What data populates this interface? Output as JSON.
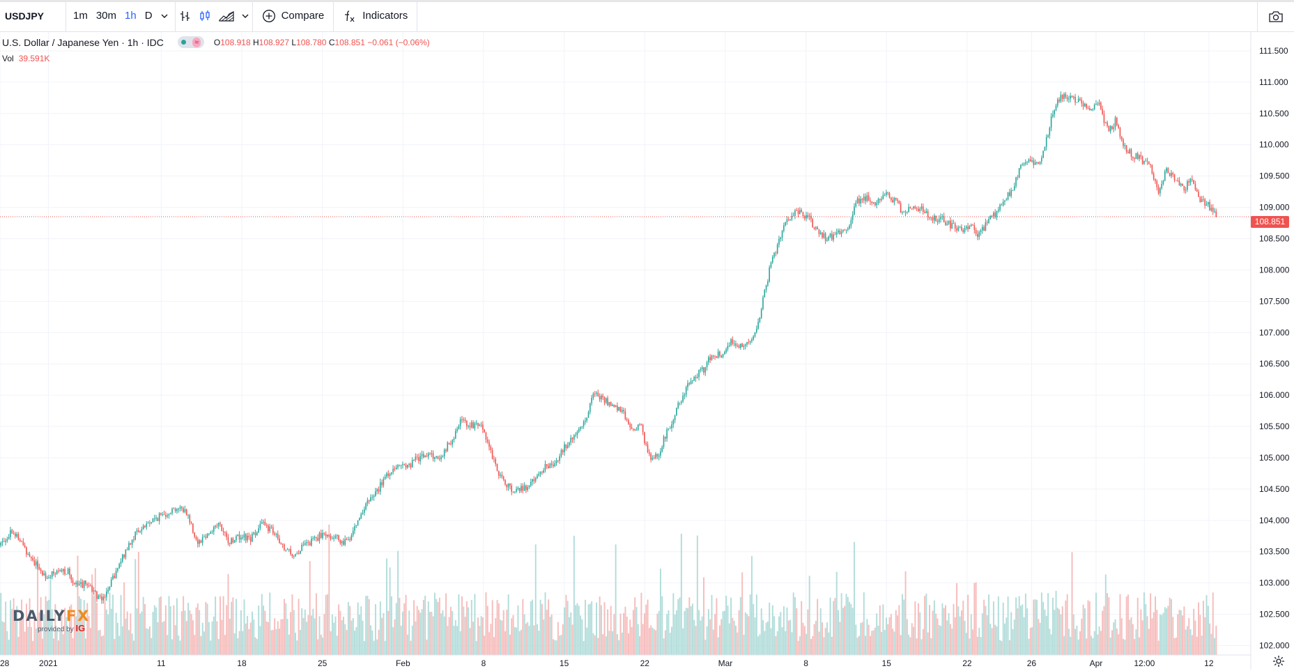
{
  "toolbar": {
    "symbol": "USDJPY",
    "intervals": [
      "1m",
      "30m",
      "1h",
      "D"
    ],
    "active_interval": "1h",
    "compare_label": "Compare",
    "indicators_label": "Indicators"
  },
  "legend": {
    "title": "U.S. Dollar / Japanese Yen · 1h · IDC",
    "open_key": "O",
    "open": "108.918",
    "high_key": "H",
    "high": "108.927",
    "low_key": "L",
    "low": "108.780",
    "close_key": "C",
    "close": "108.851",
    "change": "−0.061 (−0.06%)",
    "vol_label": "Vol",
    "vol_value": "39.591K"
  },
  "price_tag": "108.851",
  "watermark": {
    "brand_a": "DAILY",
    "brand_b": "FX",
    "provided_by": "provided by",
    "ig": "IG"
  },
  "colors": {
    "up": "#26a69a",
    "down": "#ef5350",
    "up_vol": "#a4d7d3",
    "down_vol": "#f5b1b0",
    "grid": "#f0f3fa"
  },
  "chart_data": {
    "type": "candlestick",
    "symbol": "USDJPY",
    "y_ticks": [
      "111.500",
      "111.000",
      "110.500",
      "110.000",
      "109.500",
      "109.000",
      "108.500",
      "108.000",
      "107.500",
      "107.000",
      "106.500",
      "106.000",
      "105.500",
      "105.000",
      "104.500",
      "104.000",
      "103.500",
      "103.000",
      "102.500",
      "102.000"
    ],
    "ylim": [
      101.85,
      111.8
    ],
    "x_ticks": [
      {
        "label": "28",
        "t": 0
      },
      {
        "label": "2021",
        "t": 3
      },
      {
        "label": "11",
        "t": 10
      },
      {
        "label": "18",
        "t": 15
      },
      {
        "label": "25",
        "t": 20
      },
      {
        "label": "Feb",
        "t": 25
      },
      {
        "label": "8",
        "t": 30
      },
      {
        "label": "15",
        "t": 35
      },
      {
        "label": "22",
        "t": 40
      },
      {
        "label": "Mar",
        "t": 45
      },
      {
        "label": "8",
        "t": 50
      },
      {
        "label": "15",
        "t": 55
      },
      {
        "label": "22",
        "t": 60
      },
      {
        "label": "26",
        "t": 64
      },
      {
        "label": "Apr",
        "t": 68
      },
      {
        "label": "12:00",
        "t": 71
      },
      {
        "label": "12",
        "t": 75
      }
    ],
    "xlim": [
      0,
      77.6
    ],
    "last_price": 108.851,
    "price_path": [
      [
        0,
        103.6
      ],
      [
        0.8,
        103.85
      ],
      [
        1.6,
        103.55
      ],
      [
        2.4,
        103.25
      ],
      [
        2.9,
        103.1
      ],
      [
        3.6,
        103.15
      ],
      [
        4.2,
        103.2
      ],
      [
        4.8,
        102.95
      ],
      [
        5.5,
        103.0
      ],
      [
        6.2,
        102.75
      ],
      [
        6.7,
        102.85
      ],
      [
        7.3,
        103.2
      ],
      [
        8.0,
        103.6
      ],
      [
        8.5,
        103.8
      ],
      [
        9.2,
        103.95
      ],
      [
        10.2,
        104.1
      ],
      [
        11.0,
        104.2
      ],
      [
        11.6,
        104.15
      ],
      [
        12.3,
        103.65
      ],
      [
        13.0,
        103.8
      ],
      [
        13.6,
        103.95
      ],
      [
        14.2,
        103.65
      ],
      [
        14.9,
        103.75
      ],
      [
        15.6,
        103.7
      ],
      [
        16.2,
        103.95
      ],
      [
        16.9,
        103.85
      ],
      [
        17.6,
        103.55
      ],
      [
        18.3,
        103.45
      ],
      [
        19.0,
        103.6
      ],
      [
        19.7,
        103.72
      ],
      [
        20.3,
        103.8
      ],
      [
        21.0,
        103.7
      ],
      [
        21.6,
        103.65
      ],
      [
        22.2,
        104.0
      ],
      [
        22.8,
        104.25
      ],
      [
        23.4,
        104.45
      ],
      [
        24.0,
        104.7
      ],
      [
        24.7,
        104.9
      ],
      [
        25.3,
        104.85
      ],
      [
        26.0,
        105.0
      ],
      [
        26.6,
        105.05
      ],
      [
        27.3,
        105.0
      ],
      [
        28.0,
        105.25
      ],
      [
        28.7,
        105.6
      ],
      [
        29.4,
        105.5
      ],
      [
        30.0,
        105.5
      ],
      [
        30.6,
        105.0
      ],
      [
        31.2,
        104.65
      ],
      [
        31.8,
        104.5
      ],
      [
        32.5,
        104.5
      ],
      [
        33.1,
        104.6
      ],
      [
        33.8,
        104.85
      ],
      [
        34.4,
        104.9
      ],
      [
        35.0,
        105.15
      ],
      [
        35.7,
        105.35
      ],
      [
        36.3,
        105.55
      ],
      [
        36.9,
        106.05
      ],
      [
        37.5,
        105.95
      ],
      [
        38.0,
        105.8
      ],
      [
        38.7,
        105.75
      ],
      [
        39.2,
        105.4
      ],
      [
        39.8,
        105.55
      ],
      [
        40.3,
        105.0
      ],
      [
        40.9,
        105.05
      ],
      [
        41.4,
        105.4
      ],
      [
        42.0,
        105.75
      ],
      [
        42.6,
        106.1
      ],
      [
        43.1,
        106.3
      ],
      [
        43.7,
        106.4
      ],
      [
        44.2,
        106.65
      ],
      [
        44.8,
        106.65
      ],
      [
        45.4,
        106.85
      ],
      [
        46.0,
        106.8
      ],
      [
        46.7,
        106.85
      ],
      [
        47.2,
        107.3
      ],
      [
        47.8,
        108.0
      ],
      [
        48.4,
        108.5
      ],
      [
        49.0,
        108.85
      ],
      [
        49.6,
        108.95
      ],
      [
        50.3,
        108.8
      ],
      [
        50.8,
        108.6
      ],
      [
        51.4,
        108.5
      ],
      [
        52.0,
        108.6
      ],
      [
        52.6,
        108.65
      ],
      [
        53.2,
        109.1
      ],
      [
        53.8,
        109.15
      ],
      [
        54.4,
        109.05
      ],
      [
        55.0,
        109.2
      ],
      [
        55.6,
        109.1
      ],
      [
        56.1,
        108.9
      ],
      [
        56.7,
        109.05
      ],
      [
        57.3,
        108.95
      ],
      [
        57.9,
        108.85
      ],
      [
        58.5,
        108.8
      ],
      [
        59.1,
        108.7
      ],
      [
        59.7,
        108.65
      ],
      [
        60.3,
        108.7
      ],
      [
        60.8,
        108.55
      ],
      [
        61.3,
        108.75
      ],
      [
        61.8,
        108.9
      ],
      [
        62.3,
        109.1
      ],
      [
        62.9,
        109.3
      ],
      [
        63.4,
        109.7
      ],
      [
        63.9,
        109.75
      ],
      [
        64.5,
        109.7
      ],
      [
        65.0,
        110.1
      ],
      [
        65.5,
        110.65
      ],
      [
        66.0,
        110.8
      ],
      [
        66.5,
        110.75
      ],
      [
        67.1,
        110.7
      ],
      [
        67.7,
        110.55
      ],
      [
        68.2,
        110.65
      ],
      [
        68.8,
        110.2
      ],
      [
        69.3,
        110.4
      ],
      [
        69.8,
        109.95
      ],
      [
        70.3,
        109.85
      ],
      [
        70.9,
        109.75
      ],
      [
        71.4,
        109.65
      ],
      [
        71.9,
        109.25
      ],
      [
        72.4,
        109.6
      ],
      [
        72.9,
        109.45
      ],
      [
        73.5,
        109.3
      ],
      [
        74.0,
        109.45
      ],
      [
        74.5,
        109.1
      ],
      [
        75.0,
        109.05
      ],
      [
        75.5,
        108.851
      ]
    ],
    "volume_max_k": 200
  }
}
